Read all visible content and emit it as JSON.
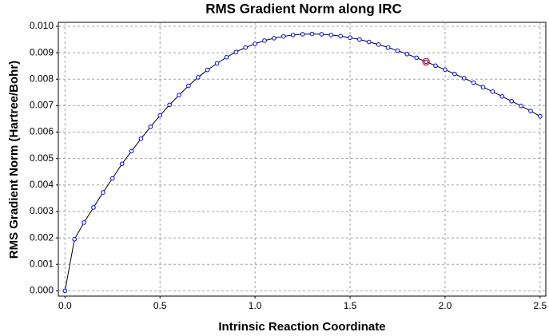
{
  "chart_data": {
    "type": "line",
    "title": "RMS Gradient Norm along IRC",
    "x_label": "Intrinsic Reaction Coordinate",
    "y_label": "RMS Gradient Norm (Hartree/Bohr)",
    "x": [
      0,
      0.05,
      0.1,
      0.15,
      0.2,
      0.25,
      0.3,
      0.35,
      0.4,
      0.45,
      0.5,
      0.55,
      0.6,
      0.65,
      0.7,
      0.75,
      0.8,
      0.85,
      0.9,
      0.95,
      1,
      1.05,
      1.1,
      1.15,
      1.2,
      1.25,
      1.3,
      1.35,
      1.4,
      1.45,
      1.5,
      1.55,
      1.6,
      1.65,
      1.7,
      1.75,
      1.8,
      1.85,
      1.9,
      1.95,
      2,
      2.05,
      2.1,
      2.15,
      2.2,
      2.25,
      2.3,
      2.35,
      2.4,
      2.45,
      2.5
    ],
    "series": [
      {
        "color": "#0000ff",
        "line_color": "#000000",
        "values": [
          0,
          0.00195,
          0.00258,
          0.00315,
          0.00372,
          0.00425,
          0.0048,
          0.00528,
          0.00575,
          0.0062,
          0.00663,
          0.00703,
          0.0074,
          0.00775,
          0.00807,
          0.00835,
          0.0086,
          0.00883,
          0.00903,
          0.0092,
          0.00934,
          0.00946,
          0.00955,
          0.00962,
          0.00967,
          0.0097,
          0.00971,
          0.0097,
          0.00967,
          0.00963,
          0.00957,
          0.0095,
          0.00941,
          0.00931,
          0.0092,
          0.00908,
          0.00895,
          0.00881,
          0.00866,
          0.00851,
          0.00836,
          0.0082,
          0.00804,
          0.00787,
          0.0077,
          0.00753,
          0.00735,
          0.00717,
          0.00699,
          0.0068,
          0.0066
        ]
      }
    ],
    "highlight_index": 38,
    "highlight_color": "#ff0000",
    "xlim": [
      -0.035,
      2.53
    ],
    "ylim": [
      -0.0002,
      0.01015
    ],
    "xticks": [
      {
        "value": 0,
        "label": "0.0"
      },
      0.5,
      {
        "value": 1,
        "label": "1.0"
      },
      1.5,
      {
        "value": 2,
        "label": "2.0"
      },
      2.5
    ],
    "yticks": [
      {
        "value": 0,
        "label": "0.000"
      },
      {
        "value": 0.001,
        "label": "0.001"
      },
      {
        "value": 0.002,
        "label": "0.002"
      },
      {
        "value": 0.003,
        "label": "0.003"
      },
      {
        "value": 0.004,
        "label": "0.004"
      },
      {
        "value": 0.005,
        "label": "0.005"
      },
      {
        "value": 0.006,
        "label": "0.006"
      },
      {
        "value": 0.007,
        "label": "0.007"
      },
      {
        "value": 0.008,
        "label": "0.008"
      },
      {
        "value": 0.009,
        "label": "0.009"
      },
      {
        "value": 0.01,
        "label": "0.010"
      }
    ],
    "grid": true
  }
}
